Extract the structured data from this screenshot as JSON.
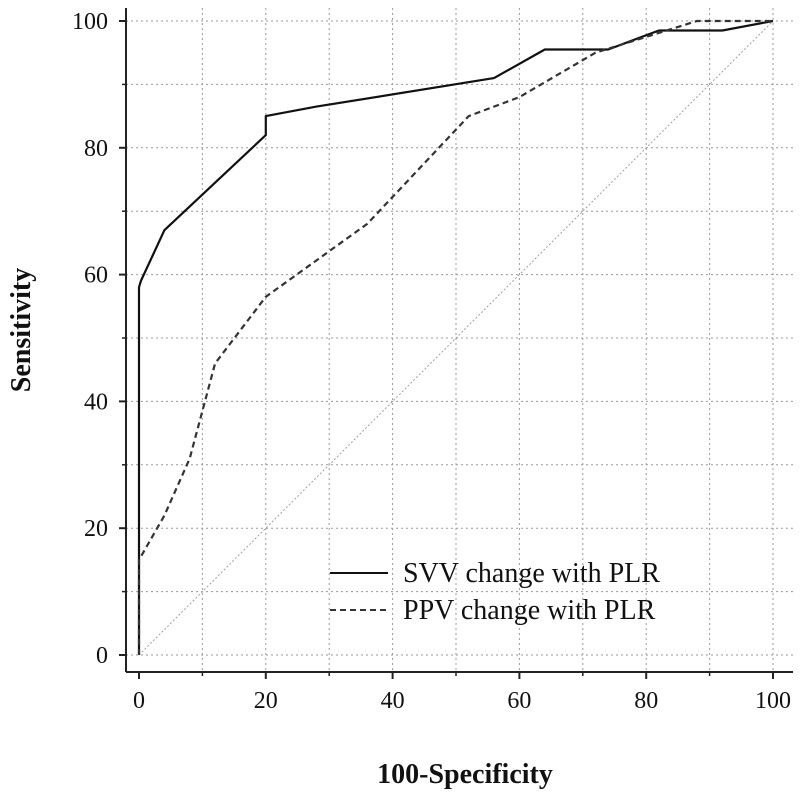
{
  "chart_data": {
    "type": "line",
    "title": "",
    "xlabel": "100-Specificity",
    "ylabel": "Sensitivity",
    "xlim": [
      0,
      100
    ],
    "ylim": [
      0,
      100
    ],
    "xticks": [
      0,
      20,
      40,
      60,
      80,
      100
    ],
    "yticks": [
      0,
      20,
      40,
      60,
      80,
      100
    ],
    "minor_x_step": 10,
    "minor_y_step": 10,
    "grid": true,
    "legend_position": "bottom-right",
    "series": [
      {
        "name": "SVV change with PLR",
        "style": "solid",
        "color": "#111111",
        "points": [
          [
            0,
            0
          ],
          [
            0,
            58
          ],
          [
            0.3,
            59
          ],
          [
            4,
            67
          ],
          [
            20,
            82
          ],
          [
            20,
            85
          ],
          [
            28,
            86.5
          ],
          [
            56,
            91
          ],
          [
            64,
            95.5
          ],
          [
            74,
            95.5
          ],
          [
            82,
            98.5
          ],
          [
            92,
            98.5
          ],
          [
            100,
            100
          ]
        ]
      },
      {
        "name": "PPV change with PLR",
        "style": "dashed",
        "color": "#333333",
        "points": [
          [
            0,
            0
          ],
          [
            0,
            15
          ],
          [
            4,
            22
          ],
          [
            8,
            31
          ],
          [
            12,
            46
          ],
          [
            20,
            56.5
          ],
          [
            36,
            68
          ],
          [
            52,
            85
          ],
          [
            60,
            88
          ],
          [
            72,
            95
          ],
          [
            80,
            97.5
          ],
          [
            88,
            100
          ],
          [
            100,
            100
          ]
        ]
      },
      {
        "name": "reference",
        "style": "dotted",
        "color": "#a0a0a0",
        "points": [
          [
            0,
            0
          ],
          [
            100,
            100
          ]
        ],
        "show_in_legend": false
      }
    ]
  }
}
